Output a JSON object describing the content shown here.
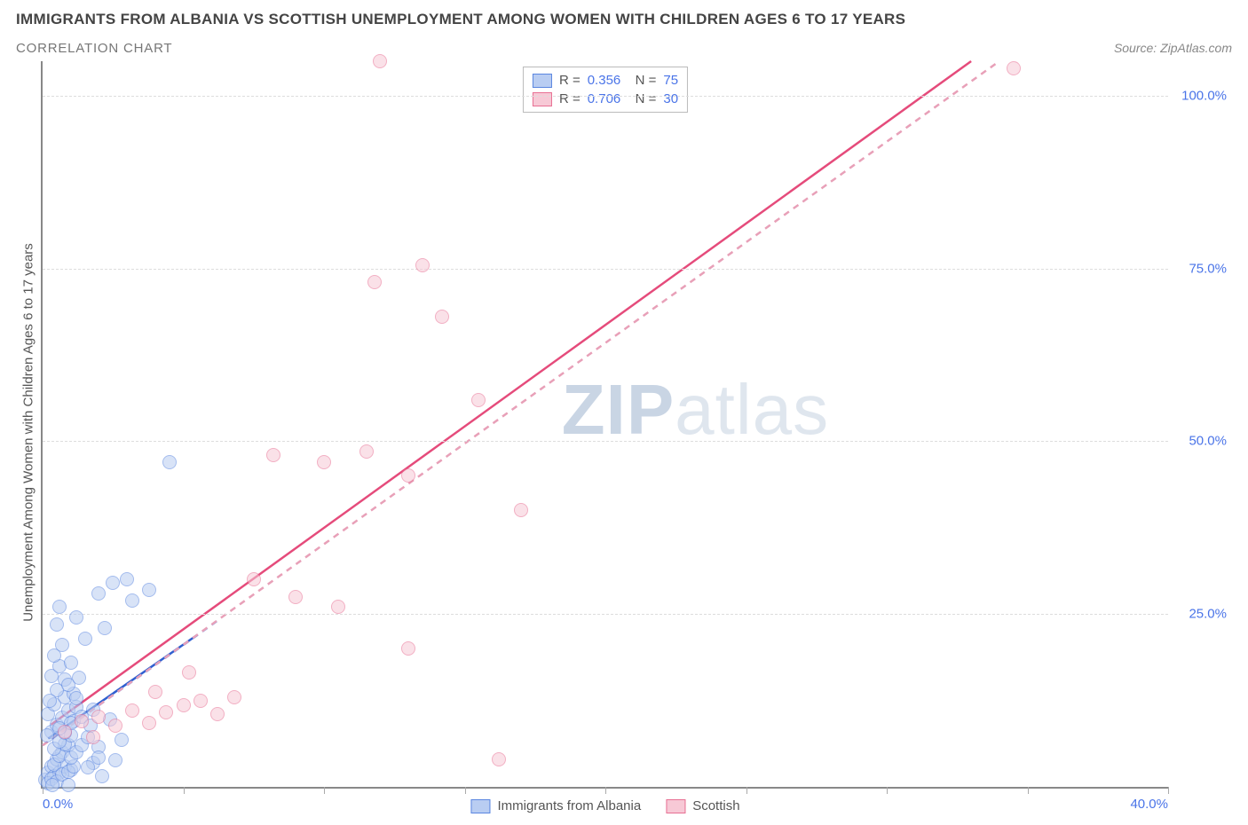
{
  "title": "IMMIGRANTS FROM ALBANIA VS SCOTTISH UNEMPLOYMENT AMONG WOMEN WITH CHILDREN AGES 6 TO 17 YEARS",
  "subtitle": "CORRELATION CHART",
  "source_prefix": "Source: ",
  "source_name": "ZipAtlas.com",
  "ylabel": "Unemployment Among Women with Children Ages 6 to 17 years",
  "watermark_bold": "ZIP",
  "watermark_light": "atlas",
  "chart": {
    "type": "scatter",
    "background_color": "#ffffff",
    "grid_color": "#dddddd",
    "axis_color": "#888888",
    "label_color": "#4a74e8",
    "xlim": [
      0,
      40
    ],
    "ylim": [
      0,
      105
    ],
    "xticks": [
      0,
      5,
      10,
      15,
      20,
      25,
      30,
      35,
      40
    ],
    "xtick_labels": [
      "0.0%",
      "",
      "",
      "",
      "",
      "",
      "",
      "",
      "40.0%"
    ],
    "yticks": [
      25,
      50,
      75,
      100
    ],
    "ytick_labels": [
      "25.0%",
      "50.0%",
      "75.0%",
      "100.0%"
    ],
    "marker_radius": 8,
    "marker_stroke_width": 1.5,
    "trend_line_width": 2.5,
    "series": [
      {
        "id": "albania",
        "label": "Immigrants from Albania",
        "fill": "#b9cdf2",
        "stroke": "#5a86e0",
        "fill_opacity": 0.55,
        "r": 0.356,
        "n": 75,
        "trend": {
          "x1": 0.2,
          "y1": 7,
          "x2": 5.5,
          "y2": 22,
          "color": "#2f5fd0",
          "dashed": false
        },
        "ref": {
          "x1": 0.0,
          "y1": 6,
          "x2": 6.2,
          "y2": 24,
          "color": "#7ea0e8",
          "dashed": true
        },
        "points": [
          [
            0.1,
            1
          ],
          [
            0.2,
            2
          ],
          [
            0.3,
            3
          ],
          [
            0.4,
            1.5
          ],
          [
            0.5,
            4
          ],
          [
            0.6,
            2
          ],
          [
            0.7,
            5
          ],
          [
            0.8,
            3
          ],
          [
            0.9,
            6
          ],
          [
            1.0,
            2.5
          ],
          [
            0.2,
            0.5
          ],
          [
            0.3,
            1.2
          ],
          [
            0.4,
            3.2
          ],
          [
            0.5,
            0.8
          ],
          [
            0.6,
            4.5
          ],
          [
            0.7,
            1.8
          ],
          [
            0.8,
            6.2
          ],
          [
            0.9,
            2.2
          ],
          [
            1.0,
            7.5
          ],
          [
            1.1,
            3
          ],
          [
            0.3,
            8
          ],
          [
            0.4,
            5.5
          ],
          [
            0.5,
            9
          ],
          [
            0.6,
            6.5
          ],
          [
            0.7,
            10
          ],
          [
            0.8,
            7.8
          ],
          [
            0.9,
            11
          ],
          [
            1.0,
            4.2
          ],
          [
            1.1,
            9.5
          ],
          [
            1.2,
            5
          ],
          [
            0.2,
            10.5
          ],
          [
            0.4,
            12
          ],
          [
            0.6,
            8.5
          ],
          [
            0.8,
            13
          ],
          [
            1.0,
            9.2
          ],
          [
            1.2,
            11.5
          ],
          [
            1.4,
            6
          ],
          [
            1.6,
            7.2
          ],
          [
            1.8,
            3.5
          ],
          [
            2.0,
            5.8
          ],
          [
            0.5,
            14
          ],
          [
            0.8,
            15.5
          ],
          [
            1.1,
            13.5
          ],
          [
            1.4,
            10.2
          ],
          [
            1.7,
            8.8
          ],
          [
            2.0,
            4.2
          ],
          [
            0.3,
            16
          ],
          [
            0.6,
            17.5
          ],
          [
            0.9,
            14.8
          ],
          [
            1.2,
            12.8
          ],
          [
            0.4,
            19
          ],
          [
            0.7,
            20.5
          ],
          [
            1.0,
            18
          ],
          [
            1.5,
            21.5
          ],
          [
            2.2,
            23
          ],
          [
            0.5,
            23.5
          ],
          [
            1.8,
            11.2
          ],
          [
            2.4,
            9.8
          ],
          [
            2.8,
            6.8
          ],
          [
            1.3,
            15.8
          ],
          [
            0.9,
            0.3
          ],
          [
            1.6,
            2.8
          ],
          [
            2.1,
            1.5
          ],
          [
            2.6,
            3.8
          ],
          [
            0.15,
            7.5
          ],
          [
            0.25,
            12.5
          ],
          [
            2.0,
            28
          ],
          [
            2.5,
            29.5
          ],
          [
            3.2,
            27
          ],
          [
            3.0,
            30
          ],
          [
            3.8,
            28.5
          ],
          [
            1.2,
            24.5
          ],
          [
            0.6,
            26
          ],
          [
            4.5,
            47
          ],
          [
            0.35,
            0.2
          ]
        ]
      },
      {
        "id": "scottish",
        "label": "Scottish",
        "fill": "#f7c9d6",
        "stroke": "#e86f93",
        "fill_opacity": 0.55,
        "r": 0.706,
        "n": 30,
        "trend": {
          "x1": 0.3,
          "y1": 9,
          "x2": 33,
          "y2": 105,
          "color": "#e54b7b",
          "dashed": false
        },
        "ref": {
          "x1": 0.0,
          "y1": 6,
          "x2": 34,
          "y2": 105,
          "color": "#e8a0b8",
          "dashed": true
        },
        "points": [
          [
            0.8,
            8
          ],
          [
            1.4,
            9.5
          ],
          [
            2.0,
            10.2
          ],
          [
            2.6,
            8.8
          ],
          [
            3.2,
            11
          ],
          [
            3.8,
            9.2
          ],
          [
            4.4,
            10.8
          ],
          [
            5.0,
            11.8
          ],
          [
            5.6,
            12.5
          ],
          [
            6.2,
            10.5
          ],
          [
            6.8,
            13
          ],
          [
            7.5,
            30
          ],
          [
            5.2,
            16.5
          ],
          [
            9.0,
            27.5
          ],
          [
            10.5,
            26
          ],
          [
            8.2,
            48
          ],
          [
            10.0,
            47
          ],
          [
            11.5,
            48.5
          ],
          [
            13.0,
            45
          ],
          [
            11.8,
            73
          ],
          [
            13.5,
            75.5
          ],
          [
            14.2,
            68
          ],
          [
            15.5,
            56
          ],
          [
            17.0,
            40
          ],
          [
            13.0,
            20
          ],
          [
            12.0,
            105
          ],
          [
            34.5,
            104
          ],
          [
            16.2,
            4
          ],
          [
            4.0,
            13.8
          ],
          [
            1.8,
            7.2
          ]
        ]
      }
    ]
  }
}
